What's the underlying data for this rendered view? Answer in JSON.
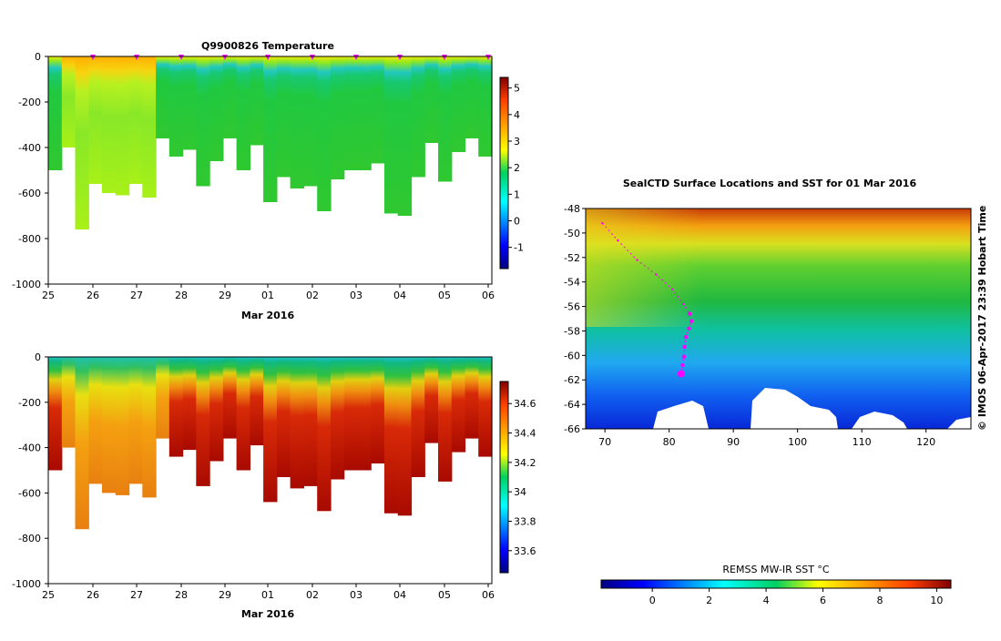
{
  "chart_data": [
    {
      "type": "heatmap",
      "id": "temperature",
      "title": "Q9900826  Temperature",
      "xlabel": "Mar 2016",
      "x_tick_labels": [
        "25",
        "26",
        "27",
        "28",
        "29",
        "01",
        "02",
        "03",
        "04",
        "05",
        "06"
      ],
      "y_tick_labels": [
        "0",
        "-200",
        "-400",
        "-600",
        "-800",
        "-1000"
      ],
      "ylim": [
        -1000,
        0
      ],
      "colorbar": {
        "ticks": [
          "5",
          "4",
          "3",
          "2",
          "1",
          "0",
          "-1"
        ],
        "range": [
          -1.8,
          5.4
        ]
      },
      "profile_markers_days": [
        1,
        2,
        3,
        4,
        5,
        6,
        7,
        8,
        9,
        10,
        11
      ],
      "profile_depths": [
        500,
        400,
        760,
        560,
        600,
        610,
        560,
        620,
        360,
        440,
        410,
        570,
        460,
        360,
        500,
        390,
        640,
        530,
        580,
        570,
        680,
        540,
        500,
        500,
        470,
        690,
        700,
        530,
        380,
        550,
        420,
        360,
        440
      ]
    },
    {
      "type": "heatmap",
      "id": "salinity",
      "title": "",
      "xlabel": "Mar 2016",
      "x_tick_labels": [
        "25",
        "26",
        "27",
        "28",
        "29",
        "01",
        "02",
        "03",
        "04",
        "05",
        "06"
      ],
      "y_tick_labels": [
        "0",
        "-200",
        "-400",
        "-600",
        "-800",
        "-1000"
      ],
      "ylim": [
        -1000,
        0
      ],
      "colorbar": {
        "ticks": [
          "34.6",
          "34.4",
          "34.2",
          "34",
          "33.8",
          "33.6"
        ],
        "range": [
          33.45,
          34.75
        ]
      },
      "profile_depths": [
        500,
        400,
        760,
        560,
        600,
        610,
        560,
        620,
        360,
        440,
        410,
        570,
        460,
        360,
        500,
        390,
        640,
        530,
        580,
        570,
        680,
        540,
        500,
        500,
        470,
        690,
        700,
        530,
        380,
        550,
        420,
        360,
        440
      ]
    },
    {
      "type": "map",
      "id": "sst_map",
      "title": "SealCTD Surface Locations and SST for 01 Mar 2016",
      "x_tick_labels": [
        "70",
        "80",
        "90",
        "100",
        "110",
        "120"
      ],
      "y_tick_labels": [
        "-48",
        "-50",
        "-52",
        "-54",
        "-56",
        "-58",
        "-60",
        "-62",
        "-64",
        "-66"
      ],
      "xlim": [
        67,
        127
      ],
      "ylim": [
        -66,
        -48
      ],
      "track": [
        {
          "lon": 69.6,
          "lat": -49.2
        },
        {
          "lon": 72.0,
          "lat": -50.6
        },
        {
          "lon": 75.0,
          "lat": -52.2
        },
        {
          "lon": 78.0,
          "lat": -53.4
        },
        {
          "lon": 80.5,
          "lat": -54.6
        },
        {
          "lon": 82.2,
          "lat": -55.8
        },
        {
          "lon": 83.2,
          "lat": -56.6
        },
        {
          "lon": 83.5,
          "lat": -57.2
        },
        {
          "lon": 83.1,
          "lat": -57.8
        },
        {
          "lon": 82.6,
          "lat": -58.5
        },
        {
          "lon": 82.4,
          "lat": -59.3
        },
        {
          "lon": 82.3,
          "lat": -60.1
        },
        {
          "lon": 82.1,
          "lat": -60.8
        },
        {
          "lon": 81.9,
          "lat": -61.5
        }
      ],
      "colorbar": {
        "label": "REMSS MW-IR SST °C",
        "ticks": [
          "0",
          "2",
          "4",
          "6",
          "8",
          "10"
        ],
        "range": [
          -1.8,
          10.5
        ]
      }
    }
  ],
  "timestamp": "© IMOS 06-Apr-2017 23:39 Hobart Time",
  "colors": {
    "marker": "#ff00ff",
    "land": "#ffffff"
  }
}
